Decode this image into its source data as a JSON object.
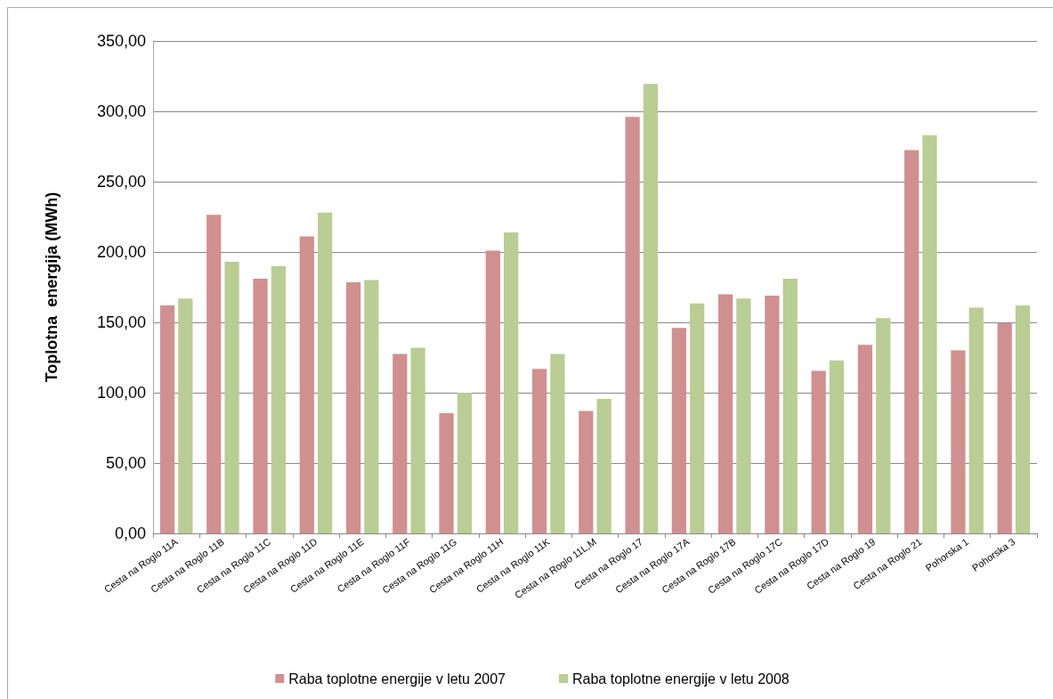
{
  "chart_data": {
    "type": "bar",
    "ylabel": "Toplotna  energija (MWh)",
    "categories": [
      "Cesta na Roglo 11A",
      "Cesta na Roglo 11B",
      "Cesta na Roglo 11C",
      "Cesta na Roglo 11D",
      "Cesta na Roglo 11E",
      "Cesta na Roglo 11F",
      "Cesta na Roglo 11G",
      "Cesta na Roglo 11H",
      "Cesta na Roglo 11K",
      "Cesta na Roglo 11L,M",
      "Cesta na Roglo 17",
      "Cesta na Roglo 17A",
      "Cesta na Roglo 17B",
      "Cesta na Roglo 17C",
      "Cesta na Roglo 17D",
      "Cesta na Roglo 19",
      "Cesta na Roglo 21",
      "Pohorska 1",
      "Pohorska 3"
    ],
    "series": [
      {
        "name": "Raba toplotne energije v letu 2007",
        "color": "#d09090",
        "values": [
          162,
          226.5,
          181,
          211,
          178.5,
          127.5,
          85.5,
          201,
          117,
          87,
          296,
          146,
          170,
          169,
          115.5,
          134,
          272.5,
          130,
          149.5
        ]
      },
      {
        "name": "Raba toplotne energije v letu 2008",
        "color": "#b9cd94",
        "values": [
          167,
          193,
          190,
          228,
          180,
          132,
          100,
          214,
          127.5,
          95.5,
          319.5,
          163.5,
          167,
          181,
          123,
          153,
          283,
          160.5,
          162
        ]
      }
    ],
    "ylim": [
      0,
      350
    ],
    "yticks": [
      {
        "value": 0,
        "label": "0,00"
      },
      {
        "value": 50,
        "label": "50,00"
      },
      {
        "value": 100,
        "label": "100,00"
      },
      {
        "value": 150,
        "label": "150,00"
      },
      {
        "value": 200,
        "label": "200,00"
      },
      {
        "value": 250,
        "label": "250,00"
      },
      {
        "value": 300,
        "label": "300,00"
      },
      {
        "value": 350,
        "label": "350,00"
      }
    ],
    "grid": "y",
    "legend": "bottom"
  }
}
